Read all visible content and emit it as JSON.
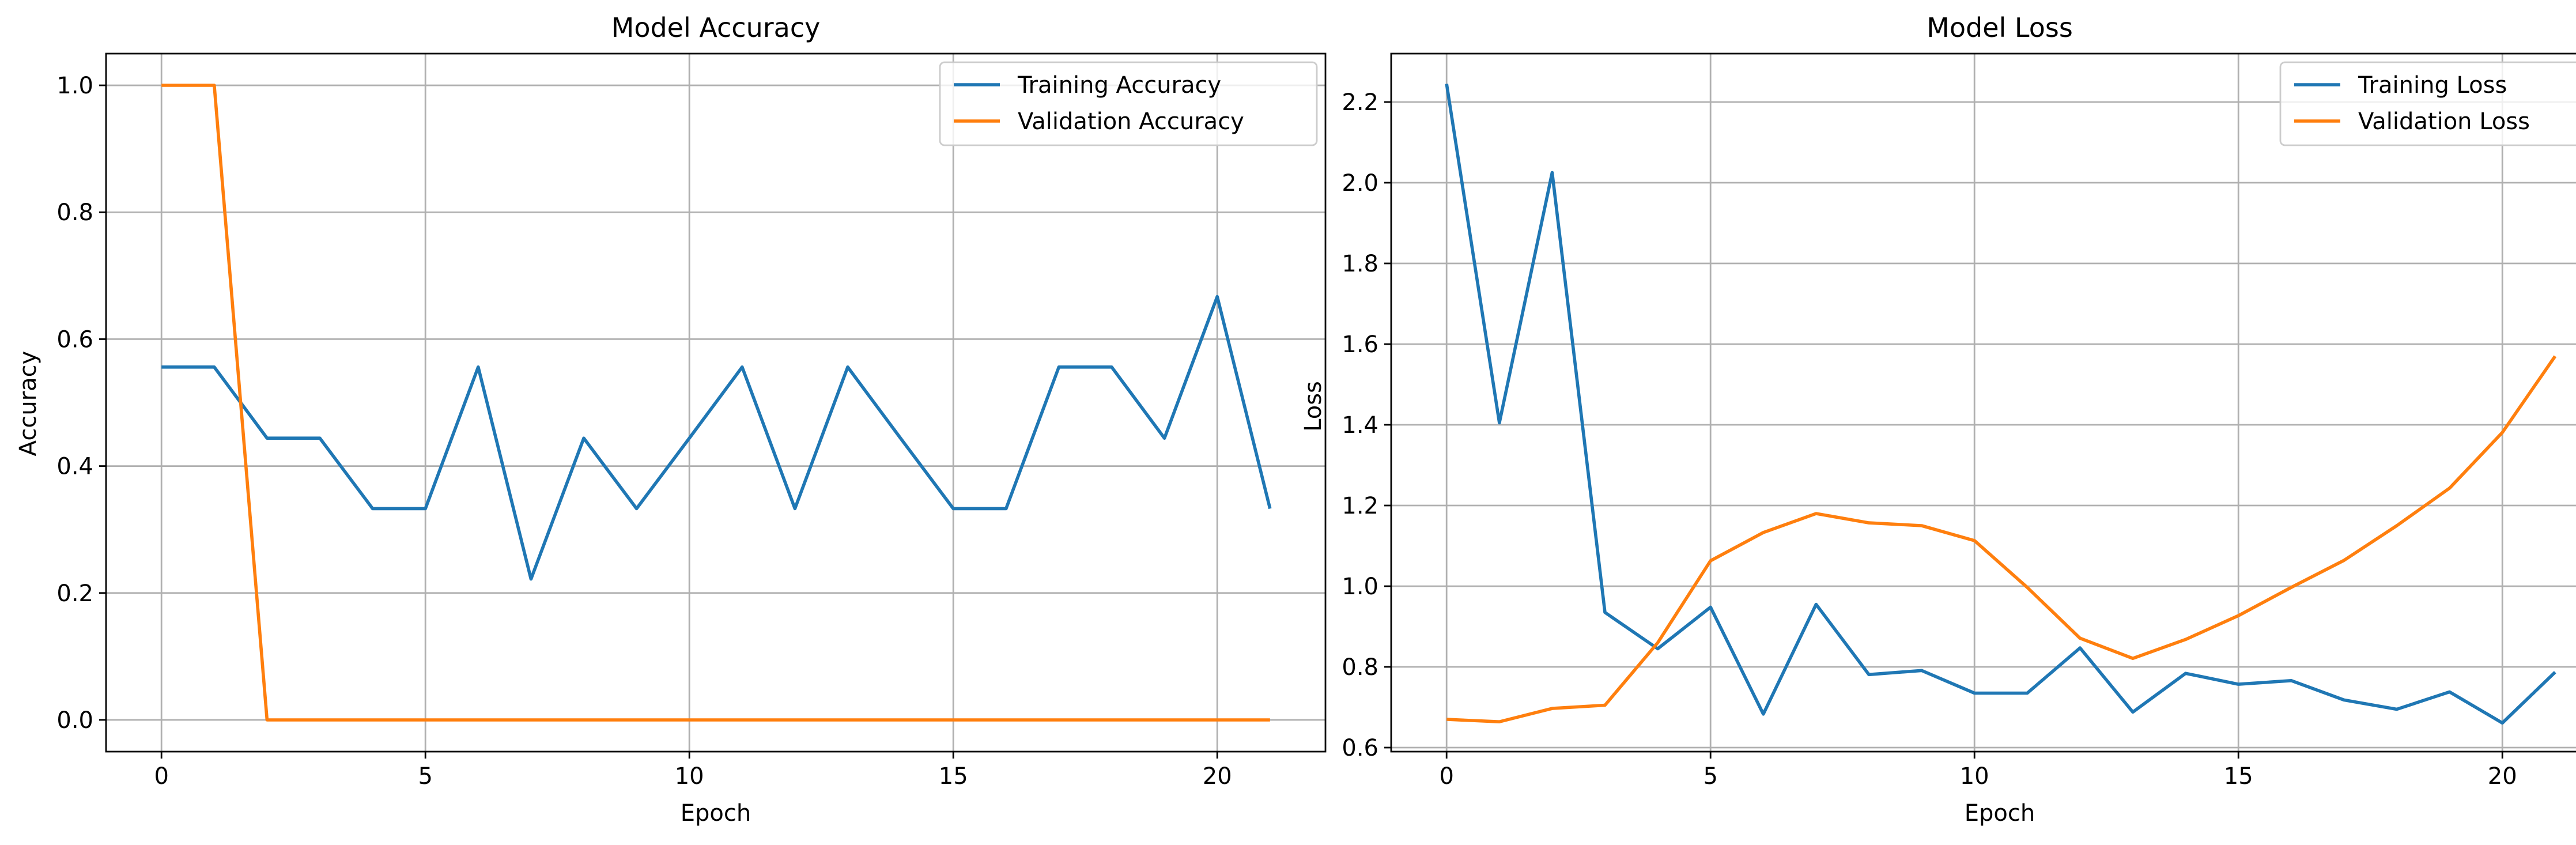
{
  "colors": {
    "training": "#1f77b4",
    "validation": "#ff7f0e"
  },
  "chart_data": [
    {
      "type": "line",
      "title": "Model Accuracy",
      "xlabel": "Epoch",
      "ylabel": "Accuracy",
      "grid": true,
      "legend_position": "top-right",
      "xlim": [
        -1.05,
        22.05
      ],
      "ylim": [
        -0.05,
        1.05
      ],
      "xticks": [
        0,
        5,
        10,
        15,
        20
      ],
      "yticks": [
        0.0,
        0.2,
        0.4,
        0.6,
        0.8,
        1.0
      ],
      "xtick_labels": [
        "0",
        "5",
        "10",
        "15",
        "20"
      ],
      "ytick_labels": [
        "0.0",
        "0.2",
        "0.4",
        "0.6",
        "0.8",
        "1.0"
      ],
      "x": [
        0,
        1,
        2,
        3,
        4,
        5,
        6,
        7,
        8,
        9,
        10,
        11,
        12,
        13,
        14,
        15,
        16,
        17,
        18,
        19,
        20,
        21
      ],
      "series": [
        {
          "name": "Training Accuracy",
          "color": "#1f77b4",
          "values": [
            0.556,
            0.556,
            0.444,
            0.444,
            0.333,
            0.333,
            0.556,
            0.222,
            0.444,
            0.333,
            0.444,
            0.556,
            0.333,
            0.556,
            0.444,
            0.333,
            0.333,
            0.556,
            0.556,
            0.444,
            0.667,
            0.333
          ]
        },
        {
          "name": "Validation Accuracy",
          "color": "#ff7f0e",
          "values": [
            1.0,
            1.0,
            0.0,
            0.0,
            0.0,
            0.0,
            0.0,
            0.0,
            0.0,
            0.0,
            0.0,
            0.0,
            0.0,
            0.0,
            0.0,
            0.0,
            0.0,
            0.0,
            0.0,
            0.0,
            0.0,
            0.0
          ]
        }
      ]
    },
    {
      "type": "line",
      "title": "Model Loss",
      "xlabel": "Epoch",
      "ylabel": "Loss",
      "grid": true,
      "legend_position": "top-right",
      "xlim": [
        -1.05,
        22.05
      ],
      "ylim": [
        0.59,
        2.32
      ],
      "xticks": [
        0,
        5,
        10,
        15,
        20
      ],
      "yticks": [
        0.6,
        0.8,
        1.0,
        1.2,
        1.4,
        1.6,
        1.8,
        2.0,
        2.2
      ],
      "xtick_labels": [
        "0",
        "5",
        "10",
        "15",
        "20"
      ],
      "ytick_labels": [
        "0.6",
        "0.8",
        "1.0",
        "1.2",
        "1.4",
        "1.6",
        "1.8",
        "2.0",
        "2.2"
      ],
      "x": [
        0,
        1,
        2,
        3,
        4,
        5,
        6,
        7,
        8,
        9,
        10,
        11,
        12,
        13,
        14,
        15,
        16,
        17,
        18,
        19,
        20,
        21
      ],
      "series": [
        {
          "name": "Training Loss",
          "color": "#1f77b4",
          "values": [
            2.245,
            1.405,
            2.025,
            0.935,
            0.845,
            0.948,
            0.683,
            0.955,
            0.781,
            0.791,
            0.735,
            0.735,
            0.847,
            0.688,
            0.784,
            0.757,
            0.766,
            0.718,
            0.695,
            0.738,
            0.661,
            0.787
          ]
        },
        {
          "name": "Validation Loss",
          "color": "#ff7f0e",
          "values": [
            0.67,
            0.664,
            0.697,
            0.705,
            0.86,
            1.063,
            1.133,
            1.18,
            1.157,
            1.15,
            1.113,
            0.997,
            0.871,
            0.821,
            0.868,
            0.927,
            0.997,
            1.064,
            1.15,
            1.243,
            1.381,
            1.57
          ]
        }
      ]
    }
  ]
}
